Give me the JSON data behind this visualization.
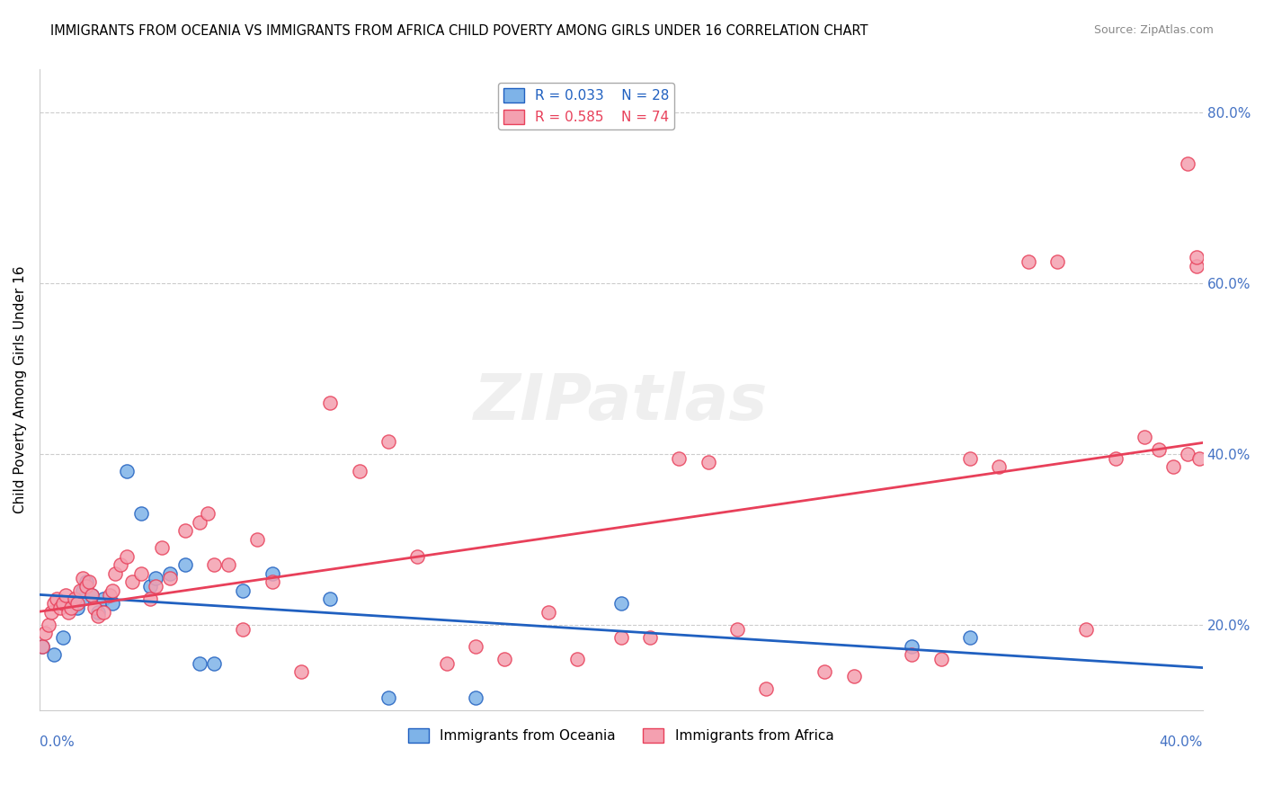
{
  "title": "IMMIGRANTS FROM OCEANIA VS IMMIGRANTS FROM AFRICA CHILD POVERTY AMONG GIRLS UNDER 16 CORRELATION CHART",
  "source": "Source: ZipAtlas.com",
  "ylabel": "Child Poverty Among Girls Under 16",
  "ylabel_right_ticks": [
    "20.0%",
    "40.0%",
    "60.0%",
    "80.0%"
  ],
  "ylabel_right_vals": [
    0.2,
    0.4,
    0.6,
    0.8
  ],
  "xlim": [
    0.0,
    0.4
  ],
  "ylim": [
    0.1,
    0.85
  ],
  "legend1_R": "0.033",
  "legend1_N": "28",
  "legend2_R": "0.585",
  "legend2_N": "74",
  "color_oceania": "#7eb3e8",
  "color_africa": "#f4a0b0",
  "color_oceania_line": "#2060c0",
  "color_africa_line": "#e8405a",
  "watermark": "ZIPatlas",
  "oceania_x": [
    0.001,
    0.005,
    0.008,
    0.012,
    0.013,
    0.015,
    0.015,
    0.016,
    0.018,
    0.02,
    0.022,
    0.025,
    0.03,
    0.035,
    0.038,
    0.04,
    0.045,
    0.05,
    0.055,
    0.06,
    0.07,
    0.08,
    0.1,
    0.12,
    0.15,
    0.2,
    0.3,
    0.32
  ],
  "oceania_y": [
    0.175,
    0.165,
    0.185,
    0.225,
    0.22,
    0.23,
    0.24,
    0.25,
    0.235,
    0.215,
    0.23,
    0.225,
    0.38,
    0.33,
    0.245,
    0.255,
    0.26,
    0.27,
    0.155,
    0.155,
    0.24,
    0.26,
    0.23,
    0.115,
    0.115,
    0.225,
    0.175,
    0.185
  ],
  "africa_x": [
    0.001,
    0.002,
    0.003,
    0.004,
    0.005,
    0.006,
    0.007,
    0.008,
    0.009,
    0.01,
    0.011,
    0.012,
    0.013,
    0.014,
    0.015,
    0.016,
    0.017,
    0.018,
    0.019,
    0.02,
    0.022,
    0.024,
    0.025,
    0.026,
    0.028,
    0.03,
    0.032,
    0.035,
    0.038,
    0.04,
    0.042,
    0.045,
    0.05,
    0.055,
    0.058,
    0.06,
    0.065,
    0.07,
    0.075,
    0.08,
    0.09,
    0.1,
    0.11,
    0.12,
    0.13,
    0.14,
    0.15,
    0.16,
    0.175,
    0.185,
    0.2,
    0.21,
    0.22,
    0.23,
    0.24,
    0.25,
    0.27,
    0.28,
    0.3,
    0.31,
    0.32,
    0.33,
    0.34,
    0.35,
    0.36,
    0.37,
    0.38,
    0.385,
    0.39,
    0.395,
    0.395,
    0.398,
    0.398,
    0.399
  ],
  "africa_y": [
    0.175,
    0.19,
    0.2,
    0.215,
    0.225,
    0.23,
    0.22,
    0.225,
    0.235,
    0.215,
    0.22,
    0.23,
    0.225,
    0.24,
    0.255,
    0.245,
    0.25,
    0.235,
    0.22,
    0.21,
    0.215,
    0.235,
    0.24,
    0.26,
    0.27,
    0.28,
    0.25,
    0.26,
    0.23,
    0.245,
    0.29,
    0.255,
    0.31,
    0.32,
    0.33,
    0.27,
    0.27,
    0.195,
    0.3,
    0.25,
    0.145,
    0.46,
    0.38,
    0.415,
    0.28,
    0.155,
    0.175,
    0.16,
    0.215,
    0.16,
    0.185,
    0.185,
    0.395,
    0.39,
    0.195,
    0.125,
    0.145,
    0.14,
    0.165,
    0.16,
    0.395,
    0.385,
    0.625,
    0.625,
    0.195,
    0.395,
    0.42,
    0.405,
    0.385,
    0.74,
    0.4,
    0.62,
    0.63,
    0.395
  ]
}
